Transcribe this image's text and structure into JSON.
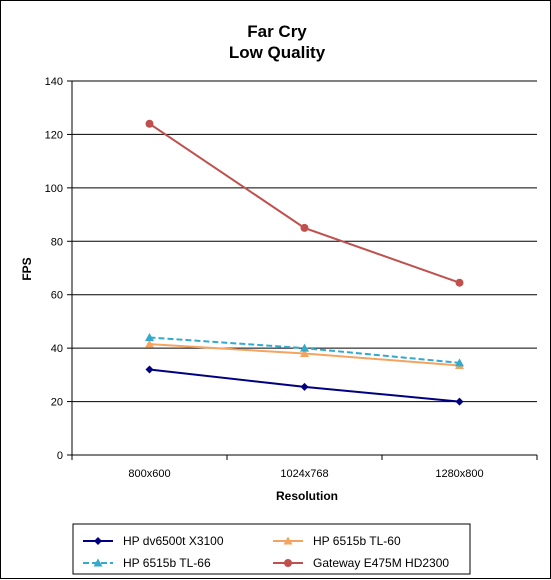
{
  "chart_data": {
    "type": "line",
    "title": "Far Cry",
    "subtitle": "Low Quality",
    "xlabel": "Resolution",
    "ylabel": "FPS",
    "categories": [
      "800x600",
      "1024x768",
      "1280x800"
    ],
    "ylim": [
      0,
      140
    ],
    "yticks": [
      0,
      20,
      40,
      60,
      80,
      100,
      120,
      140
    ],
    "grid": "horizontal",
    "legend_position": "bottom",
    "series": [
      {
        "name": "HP dv6500t  X3100",
        "values": [
          32,
          25.5,
          20
        ],
        "color": "#000080",
        "marker": "diamond",
        "dash": "solid"
      },
      {
        "name": "HP 6515b  TL-60",
        "values": [
          41.5,
          38,
          33.5
        ],
        "color": "#f4a460",
        "marker": "triangle",
        "dash": "solid"
      },
      {
        "name": "HP 6515b  TL-66",
        "values": [
          44,
          40,
          34.5
        ],
        "color": "#33aacc",
        "marker": "triangle",
        "dash": "dashed"
      },
      {
        "name": "Gateway  E475M  HD2300",
        "values": [
          124,
          85,
          64.5
        ],
        "color": "#c0504d",
        "marker": "circle",
        "dash": "solid"
      }
    ]
  }
}
